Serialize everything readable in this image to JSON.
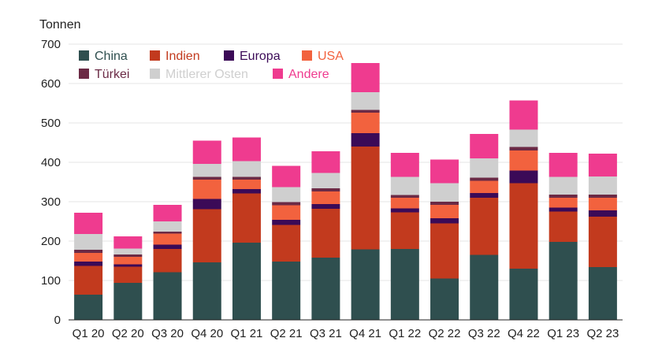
{
  "chart_data": {
    "type": "bar",
    "stacked": true,
    "ylabel": "Tonnen",
    "ylim": [
      0,
      700
    ],
    "yticks": [
      0,
      100,
      200,
      300,
      400,
      500,
      600,
      700
    ],
    "grid": true,
    "legend_placement": "top-left",
    "categories": [
      "Q1 20",
      "Q2 20",
      "Q3 20",
      "Q4 20",
      "Q1 21",
      "Q2 21",
      "Q3 21",
      "Q4 21",
      "Q1 22",
      "Q2 22",
      "Q3 22",
      "Q4 22",
      "Q1 23",
      "Q2 23"
    ],
    "series": [
      {
        "name": "China",
        "color": "#2f4f4f",
        "values": [
          64,
          94,
          121,
          146,
          196,
          148,
          158,
          179,
          180,
          105,
          165,
          130,
          198,
          134
        ]
      },
      {
        "name": "Indien",
        "color": "#c23a1e",
        "values": [
          73,
          41,
          59,
          135,
          125,
          93,
          124,
          261,
          93,
          140,
          145,
          217,
          77,
          128
        ]
      },
      {
        "name": "Europa",
        "color": "#3b0a57",
        "values": [
          11,
          6,
          11,
          26,
          11,
          13,
          12,
          34,
          10,
          13,
          12,
          32,
          10,
          16
        ]
      },
      {
        "name": "USA",
        "color": "#f2623e",
        "values": [
          22,
          19,
          28,
          49,
          24,
          37,
          32,
          52,
          27,
          34,
          31,
          51,
          25,
          32
        ]
      },
      {
        "name": "Türkei",
        "color": "#6b2a45",
        "values": [
          8,
          6,
          5,
          7,
          7,
          8,
          8,
          7,
          7,
          8,
          8,
          9,
          8,
          8
        ]
      },
      {
        "name": "Mittlerer Osten",
        "color": "#cfcfcf",
        "values": [
          40,
          15,
          26,
          33,
          40,
          38,
          39,
          45,
          46,
          47,
          49,
          44,
          45,
          46
        ]
      },
      {
        "name": "Andere",
        "color": "#ef3b8f",
        "values": [
          54,
          31,
          42,
          59,
          60,
          54,
          55,
          74,
          61,
          60,
          62,
          74,
          61,
          58
        ]
      }
    ]
  }
}
